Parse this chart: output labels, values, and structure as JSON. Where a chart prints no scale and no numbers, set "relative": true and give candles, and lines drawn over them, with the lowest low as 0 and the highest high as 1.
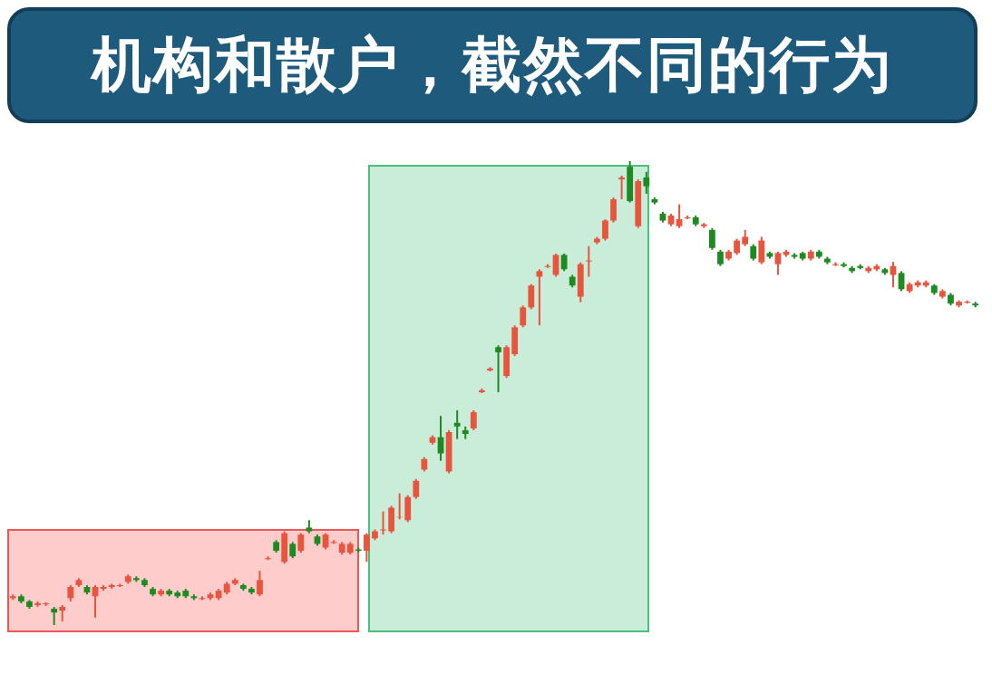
{
  "chart_data": {
    "type": "candlestick",
    "title": "机构和散户，截然不同的行为",
    "relative": true,
    "categories": [
      null,
      null,
      null,
      null,
      null,
      null,
      null,
      null,
      null,
      null,
      null,
      null,
      null,
      null,
      null,
      null,
      null,
      null,
      null,
      null,
      null,
      null,
      null,
      null,
      null,
      null,
      null,
      null,
      null,
      null,
      null,
      null,
      null,
      null,
      null,
      null,
      null,
      null,
      null,
      null,
      null,
      null,
      null,
      null,
      null,
      null,
      null,
      null,
      null,
      null,
      null,
      null,
      null,
      null,
      null,
      null,
      null,
      null,
      null,
      null,
      null,
      null,
      null,
      null,
      null,
      null,
      null,
      null,
      null,
      null,
      null,
      null,
      null,
      null,
      null,
      null,
      null,
      null,
      null,
      null,
      null,
      null,
      null,
      null,
      null,
      null,
      null,
      null,
      null,
      null,
      null,
      null,
      null,
      null,
      null,
      null,
      null,
      null,
      null,
      null,
      null,
      null,
      null,
      null,
      null,
      null,
      null,
      null,
      null,
      null,
      null,
      null,
      null,
      null,
      null,
      null,
      null,
      null
    ],
    "ohlc": [
      [
        0.058,
        0.066,
        0.054,
        0.062
      ],
      [
        0.062,
        0.066,
        0.047,
        0.051
      ],
      [
        0.051,
        0.054,
        0.035,
        0.039
      ],
      [
        0.043,
        0.051,
        0.039,
        0.047
      ],
      [
        0.045,
        0.049,
        0.041,
        0.047
      ],
      [
        0.035,
        0.039,
        0,
        0.027
      ],
      [
        0.031,
        0.043,
        0.008,
        0.039
      ],
      [
        0.058,
        0.086,
        0.051,
        0.082
      ],
      [
        0.086,
        0.101,
        0.082,
        0.097
      ],
      [
        0.082,
        0.086,
        0.066,
        0.07
      ],
      [
        0.062,
        0.086,
        0.016,
        0.082
      ],
      [
        0.078,
        0.086,
        0.074,
        0.082
      ],
      [
        0.082,
        0.089,
        0.078,
        0.086
      ],
      [
        0.084,
        0.089,
        0.082,
        0.086
      ],
      [
        0.093,
        0.109,
        0.089,
        0.105
      ],
      [
        0.101,
        0.105,
        0.093,
        0.097
      ],
      [
        0.097,
        0.101,
        0.082,
        0.086
      ],
      [
        0.078,
        0.082,
        0.062,
        0.066
      ],
      [
        0.066,
        0.078,
        0.062,
        0.074
      ],
      [
        0.074,
        0.078,
        0.062,
        0.066
      ],
      [
        0.07,
        0.074,
        0.058,
        0.062
      ],
      [
        0.074,
        0.078,
        0.058,
        0.062
      ],
      [
        0.062,
        0.066,
        0.054,
        0.058
      ],
      [
        0.056,
        0.062,
        0.054,
        0.058
      ],
      [
        0.058,
        0.07,
        0.054,
        0.066
      ],
      [
        0.058,
        0.078,
        0.054,
        0.074
      ],
      [
        0.07,
        0.093,
        0.066,
        0.089
      ],
      [
        0.089,
        0.101,
        0.086,
        0.097
      ],
      [
        0.086,
        0.089,
        0.074,
        0.078
      ],
      [
        0.078,
        0.082,
        0.066,
        0.07
      ],
      [
        0.066,
        0.117,
        0.062,
        0.097
      ],
      [
        0.142,
        0.148,
        0.14,
        0.144
      ],
      [
        0.179,
        0.183,
        0.156,
        0.16
      ],
      [
        0.136,
        0.202,
        0.132,
        0.198
      ],
      [
        0.175,
        0.179,
        0.144,
        0.148
      ],
      [
        0.16,
        0.198,
        0.156,
        0.195
      ],
      [
        0.21,
        0.226,
        0.198,
        0.202
      ],
      [
        0.191,
        0.195,
        0.171,
        0.175
      ],
      [
        0.167,
        0.198,
        0.163,
        0.195
      ],
      [
        0.177,
        0.183,
        0.175,
        0.179
      ],
      [
        0.156,
        0.179,
        0.152,
        0.175
      ],
      [
        0.156,
        0.179,
        0.152,
        0.175
      ],
      [
        0.163,
        0.167,
        0.156,
        0.16
      ],
      [
        0.16,
        0.198,
        0.136,
        0.195
      ],
      [
        0.187,
        0.206,
        0.183,
        0.202
      ],
      [
        0.204,
        0.245,
        0.195,
        0.206
      ],
      [
        0.202,
        0.257,
        0.198,
        0.253
      ],
      [
        0.232,
        0.284,
        0.228,
        0.233
      ],
      [
        0.226,
        0.28,
        0.222,
        0.276
      ],
      [
        0.276,
        0.315,
        0.272,
        0.311
      ],
      [
        0.335,
        0.362,
        0.331,
        0.358
      ],
      [
        0.393,
        0.409,
        0.389,
        0.405
      ],
      [
        0.405,
        0.451,
        0.354,
        0.37
      ],
      [
        0.331,
        0.42,
        0.327,
        0.416
      ],
      [
        0.436,
        0.463,
        0.401,
        0.428
      ],
      [
        0.42,
        0.428,
        0.401,
        0.412
      ],
      [
        0.424,
        0.463,
        0.42,
        0.459
      ],
      [
        0.502,
        0.51,
        0.5,
        0.506
      ],
      [
        0.549,
        0.556,
        0.547,
        0.553
      ],
      [
        0.599,
        0.603,
        0.502,
        0.588
      ],
      [
        0.537,
        0.603,
        0.533,
        0.599
      ],
      [
        0.584,
        0.646,
        0.58,
        0.642
      ],
      [
        0.646,
        0.689,
        0.642,
        0.685
      ],
      [
        0.685,
        0.735,
        0.681,
        0.732
      ],
      [
        0.751,
        0.767,
        0.646,
        0.763
      ],
      [
        0.772,
        0.778,
        0.77,
        0.774
      ],
      [
        0.755,
        0.801,
        0.751,
        0.798
      ],
      [
        0.798,
        0.801,
        0.763,
        0.767
      ],
      [
        0.751,
        0.755,
        0.728,
        0.732
      ],
      [
        0.708,
        0.782,
        0.696,
        0.778
      ],
      [
        0.784,
        0.817,
        0.751,
        0.786
      ],
      [
        0.825,
        0.837,
        0.821,
        0.833
      ],
      [
        0.833,
        0.875,
        0.829,
        0.872
      ],
      [
        0.872,
        0.922,
        0.868,
        0.918
      ],
      [
        0.961,
        0.969,
        0.918,
        0.965
      ],
      [
        0.988,
        1,
        0.911,
        0.914
      ],
      [
        0.86,
        0.961,
        0.856,
        0.957
      ],
      [
        0.965,
        0.977,
        0.93,
        0.946
      ],
      [
        0.918,
        0.922,
        0.907,
        0.911
      ],
      [
        0.887,
        0.891,
        0.868,
        0.872
      ],
      [
        0.864,
        0.887,
        0.86,
        0.883
      ],
      [
        0.86,
        0.907,
        0.856,
        0.875
      ],
      [
        0.877,
        0.883,
        0.875,
        0.879
      ],
      [
        0.879,
        0.883,
        0.86,
        0.864
      ],
      [
        0.86,
        0.867,
        0.856,
        0.864
      ],
      [
        0.852,
        0.856,
        0.809,
        0.813
      ],
      [
        0.805,
        0.809,
        0.774,
        0.778
      ],
      [
        0.79,
        0.809,
        0.786,
        0.805
      ],
      [
        0.802,
        0.833,
        0.798,
        0.829
      ],
      [
        0.821,
        0.852,
        0.817,
        0.837
      ],
      [
        0.817,
        0.821,
        0.786,
        0.79
      ],
      [
        0.782,
        0.837,
        0.778,
        0.829
      ],
      [
        0.802,
        0.805,
        0.79,
        0.794
      ],
      [
        0.778,
        0.805,
        0.755,
        0.802
      ],
      [
        0.798,
        0.809,
        0.794,
        0.805
      ],
      [
        0.798,
        0.802,
        0.79,
        0.794
      ],
      [
        0.802,
        0.805,
        0.786,
        0.79
      ],
      [
        0.79,
        0.809,
        0.786,
        0.805
      ],
      [
        0.805,
        0.809,
        0.79,
        0.794
      ],
      [
        0.79,
        0.794,
        0.778,
        0.782
      ],
      [
        0.776,
        0.782,
        0.774,
        0.778
      ],
      [
        0.778,
        0.782,
        0.771,
        0.774
      ],
      [
        0.77,
        0.774,
        0.759,
        0.763
      ],
      [
        0.774,
        0.778,
        0.767,
        0.77
      ],
      [
        0.763,
        0.774,
        0.759,
        0.77
      ],
      [
        0.767,
        0.778,
        0.763,
        0.774
      ],
      [
        0.767,
        0.77,
        0.755,
        0.759
      ],
      [
        0.755,
        0.783,
        0.728,
        0.774
      ],
      [
        0.759,
        0.763,
        0.72,
        0.724
      ],
      [
        0.72,
        0.739,
        0.716,
        0.735
      ],
      [
        0.732,
        0.743,
        0.728,
        0.739
      ],
      [
        0.732,
        0.743,
        0.728,
        0.739
      ],
      [
        0.732,
        0.735,
        0.712,
        0.716
      ],
      [
        0.708,
        0.724,
        0.704,
        0.72
      ],
      [
        0.712,
        0.716,
        0.689,
        0.693
      ],
      [
        0.689,
        0.7,
        0.685,
        0.697
      ],
      [
        0.695,
        0.7,
        0.693,
        0.697
      ],
      [
        0.693,
        0.697,
        0.685,
        0.689
      ]
    ],
    "colors": [
      "#e8553e",
      "#1e8a22",
      "#1e8a22",
      "#e8553e",
      "#e8553e",
      "#1e8a22",
      "#e8553e",
      "#e8553e",
      "#e8553e",
      "#1e8a22",
      "#e8553e",
      "#e8553e",
      "#e8553e",
      "#e8553e",
      "#e8553e",
      "#1e8a22",
      "#1e8a22",
      "#1e8a22",
      "#e8553e",
      "#1e8a22",
      "#1e8a22",
      "#1e8a22",
      "#1e8a22",
      "#e8553e",
      "#e8553e",
      "#e8553e",
      "#e8553e",
      "#e8553e",
      "#1e8a22",
      "#1e8a22",
      "#e8553e",
      "#e8553e",
      "#1e8a22",
      "#e8553e",
      "#1e8a22",
      "#e8553e",
      "#1e8a22",
      "#1e8a22",
      "#e8553e",
      "#e8553e",
      "#e8553e",
      "#e8553e",
      "#1e8a22",
      "#e8553e",
      "#e8553e",
      "#e8553e",
      "#e8553e",
      "#e8553e",
      "#e8553e",
      "#e8553e",
      "#e8553e",
      "#e8553e",
      "#1e8a22",
      "#e8553e",
      "#1e8a22",
      "#1e8a22",
      "#e8553e",
      "#e8553e",
      "#e8553e",
      "#1e8a22",
      "#e8553e",
      "#e8553e",
      "#e8553e",
      "#e8553e",
      "#e8553e",
      "#e8553e",
      "#e8553e",
      "#1e8a22",
      "#1e8a22",
      "#e8553e",
      "#e8553e",
      "#e8553e",
      "#e8553e",
      "#e8553e",
      "#e8553e",
      "#1e8a22",
      "#e8553e",
      "#1e8a22",
      "#1e8a22",
      "#1e8a22",
      "#e8553e",
      "#e8553e",
      "#e8553e",
      "#1e8a22",
      "#e8553e",
      "#1e8a22",
      "#1e8a22",
      "#e8553e",
      "#e8553e",
      "#e8553e",
      "#1e8a22",
      "#e8553e",
      "#1e8a22",
      "#e8553e",
      "#e8553e",
      "#1e8a22",
      "#1e8a22",
      "#e8553e",
      "#1e8a22",
      "#1e8a22",
      "#e8553e",
      "#1e8a22",
      "#1e8a22",
      "#1e8a22",
      "#e8553e",
      "#e8553e",
      "#1e8a22",
      "#e8553e",
      "#1e8a22",
      "#e8553e",
      "#e8553e",
      "#e8553e",
      "#1e8a22",
      "#e8553e",
      "#1e8a22",
      "#e8553e",
      "#e8553e",
      "#1e8a22"
    ]
  }
}
